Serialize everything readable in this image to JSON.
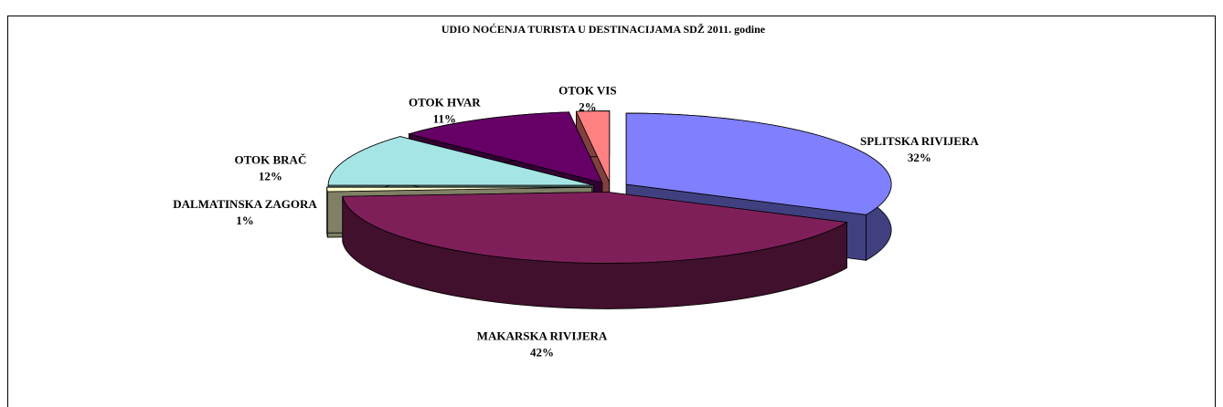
{
  "chart_data": {
    "type": "pie",
    "title": "UDIO NOĆENJA TURISTA U DESTINACIJAMA SDŽ 2011. godine",
    "categories": [
      "SPLITSKA RIVIJERA",
      "MAKARSKA RIVIJERA",
      "DALMATINSKA ZAGORA",
      "OTOK BRAČ",
      "OTOK HVAR",
      "OTOK VIS"
    ],
    "values": [
      32,
      42,
      1,
      12,
      11,
      2
    ],
    "value_labels": [
      "32%",
      "42%",
      "1%",
      "12%",
      "11%",
      "2%"
    ],
    "colors": [
      "#8080ff",
      "#7f1f5a",
      "#ffffcc",
      "#a6e5e5",
      "#660066",
      "#ff8080"
    ]
  }
}
